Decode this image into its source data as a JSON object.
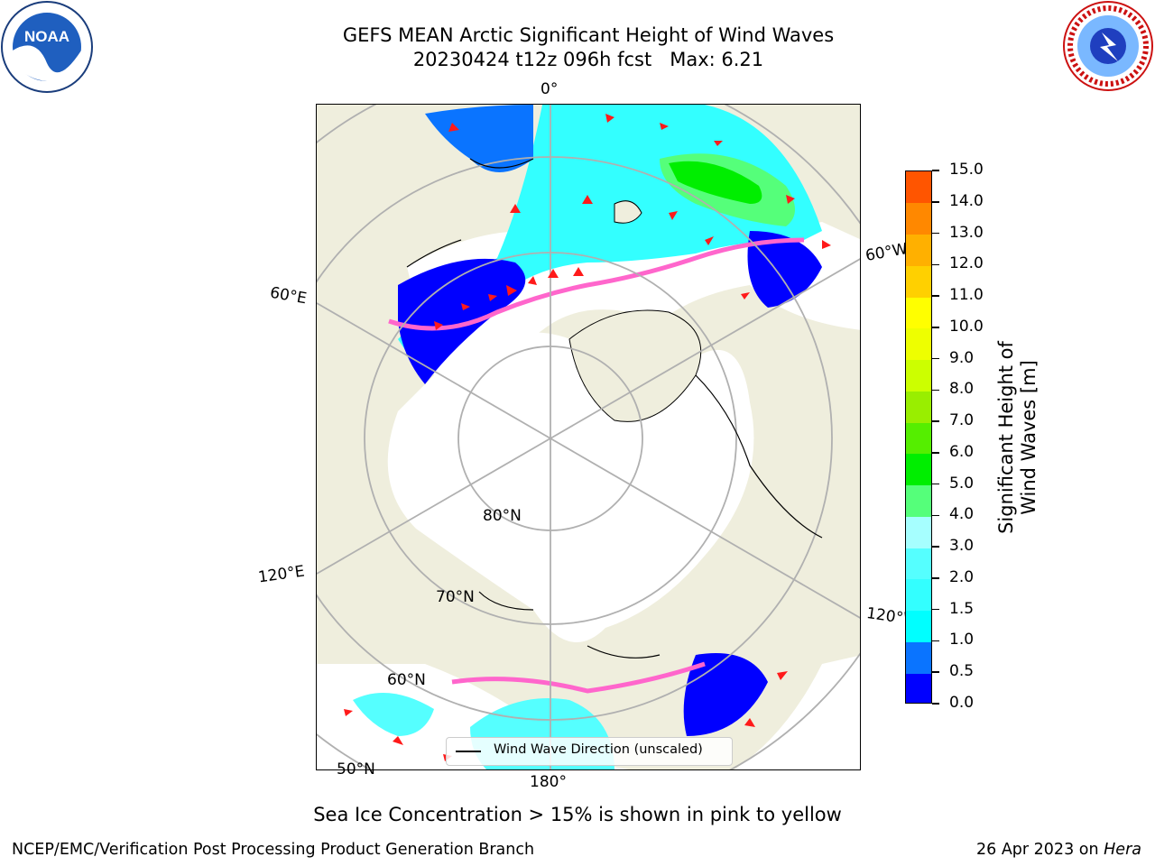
{
  "title": {
    "line1": "GEFS MEAN Arctic Significant Height of Wind Waves",
    "line2": "20230424 t12z 096h fcst   Max: 6.21"
  },
  "logos": {
    "left": "NOAA",
    "right": "NATIONAL WEATHER SERVICE"
  },
  "map": {
    "longitude_labels": {
      "lon_0": "0°",
      "lon_60e": "60°E",
      "lon_60w": "60°W",
      "lon_120e": "120°E",
      "lon_120w": "120°W",
      "lon_180": "180°"
    },
    "latitude_labels": {
      "lat_80": "80°N",
      "lat_70": "70°N",
      "lat_60": "60°N",
      "lat_50": "50°N"
    },
    "legend_label": "Wind Wave Direction (unscaled)",
    "ocean_color": "#ffffff",
    "land_color": "#efeedd"
  },
  "colorbar": {
    "title": "Significant Height of Wind Waves [m]",
    "ticks": [
      "0.0",
      "0.5",
      "1.0",
      "1.5",
      "2.0",
      "3.0",
      "4.0",
      "5.0",
      "6.0",
      "7.0",
      "8.0",
      "9.0",
      "10.0",
      "11.0",
      "12.0",
      "13.0",
      "14.0",
      "15.0"
    ],
    "colors": [
      "#0000ff",
      "#0a74ff",
      "#00ffff",
      "#33ffff",
      "#55ffff",
      "#a6ffff",
      "#55ff7a",
      "#00ee00",
      "#55ee00",
      "#99ee00",
      "#ccff00",
      "#eeff00",
      "#ffff00",
      "#ffd000",
      "#ffb000",
      "#ff8800",
      "#ff5500",
      "#ff2a00",
      "#ff0000"
    ]
  },
  "footer": {
    "note": "Sea Ice Concentration > 15% is shown in pink to yellow",
    "left": "NCEP/EMC/Verification Post Processing Product Generation Branch",
    "right_date": "26 Apr 2023 on ",
    "right_host": "Hera"
  }
}
